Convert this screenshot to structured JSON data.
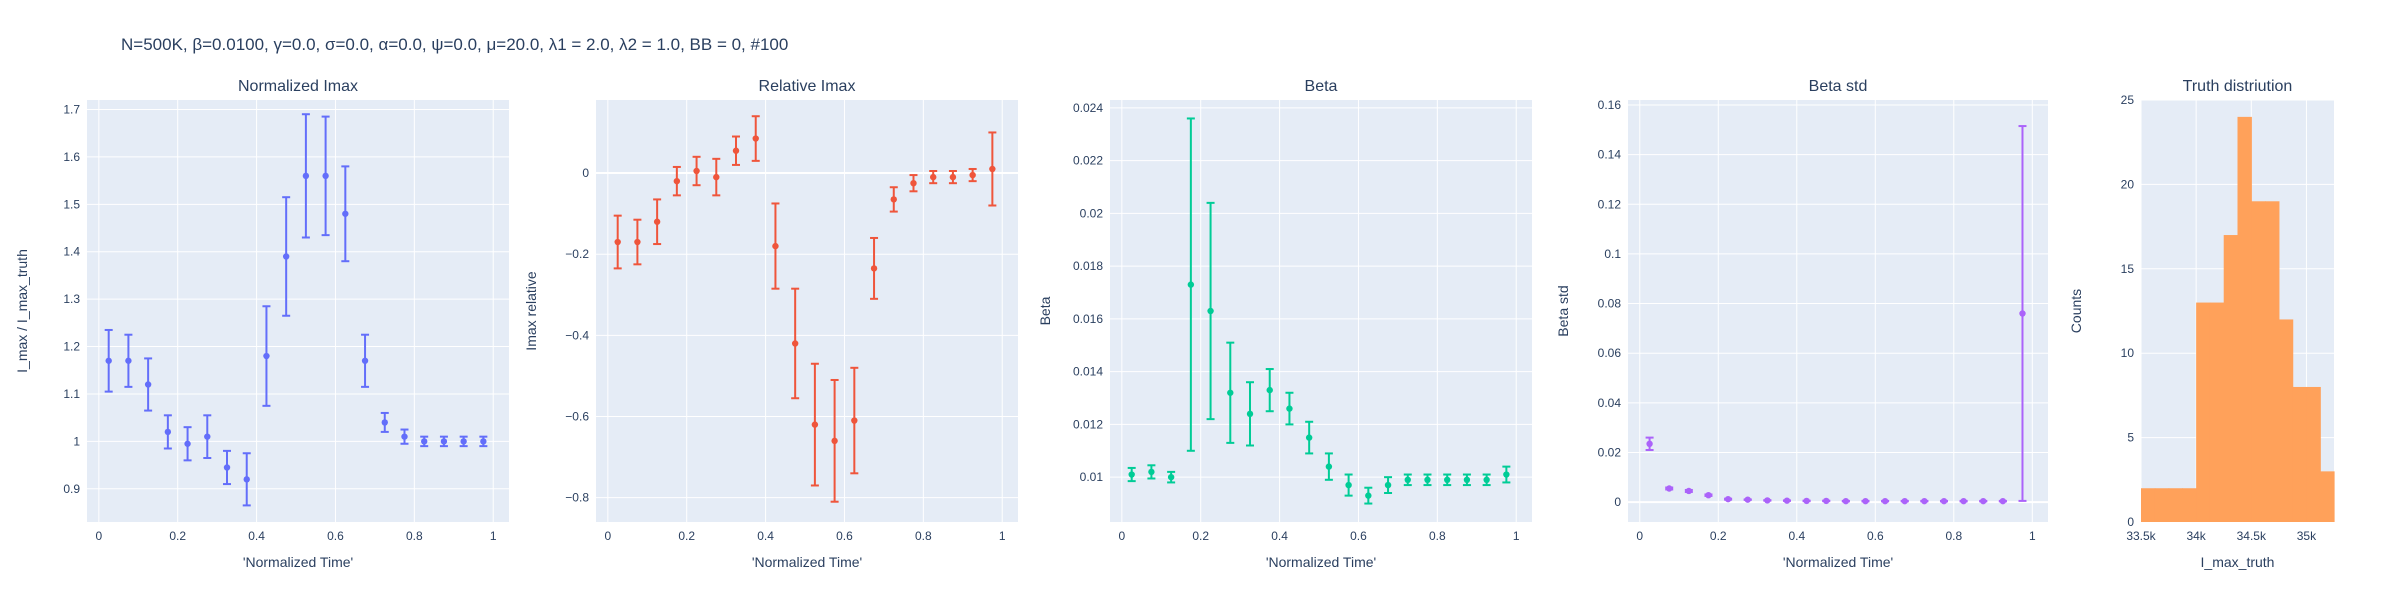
{
  "header": {
    "suptitle": "N=500K, β=0.0100, γ=0.0, σ=0.0,  α=0.0, ψ=0.0, μ=20.0, λ1 = 2.0, λ2 = 1.0, BB = 0, #100"
  },
  "chart_data": [
    {
      "type": "scatter",
      "title": "Normalized Imax",
      "xlabel": "'Normalized Time'",
      "ylabel": "I_max / I_max_truth",
      "color": "#636efa",
      "xlim": [
        -0.03,
        1.04
      ],
      "ylim": [
        0.83,
        1.72
      ],
      "xticks": [
        0,
        0.2,
        0.4,
        0.6,
        0.8,
        1
      ],
      "xticklabels": [
        "0",
        "0.2",
        "0.4",
        "0.6",
        "0.8",
        "1"
      ],
      "yticks": [
        0.9,
        1.0,
        1.1,
        1.2,
        1.3,
        1.4,
        1.5,
        1.6,
        1.7
      ],
      "yticklabels": [
        "0.9",
        "1",
        "1.1",
        "1.2",
        "1.3",
        "1.4",
        "1.5",
        "1.6",
        "1.7"
      ],
      "zero_line": false,
      "x": [
        0.025,
        0.075,
        0.125,
        0.175,
        0.225,
        0.275,
        0.325,
        0.375,
        0.425,
        0.475,
        0.525,
        0.575,
        0.625,
        0.675,
        0.725,
        0.775,
        0.825,
        0.875,
        0.925,
        0.975
      ],
      "y": [
        1.17,
        1.17,
        1.12,
        1.02,
        0.995,
        1.01,
        0.945,
        0.92,
        1.18,
        1.39,
        1.56,
        1.56,
        1.48,
        1.17,
        1.04,
        1.01,
        1.0,
        1.0,
        1.0,
        1.0
      ],
      "err": [
        0.065,
        0.055,
        0.055,
        0.035,
        0.035,
        0.045,
        0.035,
        0.055,
        0.105,
        0.125,
        0.13,
        0.125,
        0.1,
        0.055,
        0.02,
        0.015,
        0.01,
        0.01,
        0.01,
        0.01
      ]
    },
    {
      "type": "scatter",
      "title": "Relative Imax",
      "xlabel": "'Normalized Time'",
      "ylabel": "Imax relative",
      "color": "#ef553b",
      "xlim": [
        -0.03,
        1.04
      ],
      "ylim": [
        -0.86,
        0.18
      ],
      "xticks": [
        0,
        0.2,
        0.4,
        0.6,
        0.8,
        1
      ],
      "xticklabels": [
        "0",
        "0.2",
        "0.4",
        "0.6",
        "0.8",
        "1"
      ],
      "yticks": [
        -0.8,
        -0.6,
        -0.4,
        -0.2,
        0
      ],
      "yticklabels": [
        "−0.8",
        "−0.6",
        "−0.4",
        "−0.2",
        "0"
      ],
      "zero_line": true,
      "x": [
        0.025,
        0.075,
        0.125,
        0.175,
        0.225,
        0.275,
        0.325,
        0.375,
        0.425,
        0.475,
        0.525,
        0.575,
        0.625,
        0.675,
        0.725,
        0.775,
        0.825,
        0.875,
        0.925,
        0.975
      ],
      "y": [
        -0.17,
        -0.17,
        -0.12,
        -0.02,
        0.005,
        -0.01,
        0.055,
        0.085,
        -0.18,
        -0.42,
        -0.62,
        -0.66,
        -0.61,
        -0.235,
        -0.065,
        -0.025,
        -0.01,
        -0.01,
        -0.005,
        0.01
      ],
      "err": [
        0.065,
        0.055,
        0.055,
        0.035,
        0.035,
        0.045,
        0.035,
        0.055,
        0.105,
        0.135,
        0.15,
        0.15,
        0.13,
        0.075,
        0.03,
        0.02,
        0.015,
        0.015,
        0.015,
        0.09
      ]
    },
    {
      "type": "scatter",
      "title": "Beta",
      "xlabel": "'Normalized Time'",
      "ylabel": "Beta",
      "color": "#00cc96",
      "xlim": [
        -0.03,
        1.04
      ],
      "ylim": [
        0.0083,
        0.0243
      ],
      "xticks": [
        0,
        0.2,
        0.4,
        0.6,
        0.8,
        1
      ],
      "xticklabels": [
        "0",
        "0.2",
        "0.4",
        "0.6",
        "0.8",
        "1"
      ],
      "yticks": [
        0.01,
        0.012,
        0.014,
        0.016,
        0.018,
        0.02,
        0.022,
        0.024
      ],
      "yticklabels": [
        "0.01",
        "0.012",
        "0.014",
        "0.016",
        "0.018",
        "0.02",
        "0.022",
        "0.024"
      ],
      "zero_line": false,
      "x": [
        0.025,
        0.075,
        0.125,
        0.175,
        0.225,
        0.275,
        0.325,
        0.375,
        0.425,
        0.475,
        0.525,
        0.575,
        0.625,
        0.675,
        0.725,
        0.775,
        0.825,
        0.875,
        0.925,
        0.975
      ],
      "y": [
        0.0101,
        0.0102,
        0.01,
        0.0173,
        0.0163,
        0.0132,
        0.0124,
        0.0133,
        0.0126,
        0.0115,
        0.0104,
        0.0097,
        0.0093,
        0.0097,
        0.0099,
        0.0099,
        0.0099,
        0.0099,
        0.0099,
        0.0101
      ],
      "err": [
        0.00025,
        0.00025,
        0.0002,
        0.0063,
        0.0041,
        0.0019,
        0.0012,
        0.0008,
        0.0006,
        0.0006,
        0.0005,
        0.0004,
        0.0003,
        0.0003,
        0.0002,
        0.0002,
        0.0002,
        0.0002,
        0.0002,
        0.0003
      ]
    },
    {
      "type": "scatter",
      "title": "Beta std",
      "xlabel": "'Normalized Time'",
      "ylabel": "Beta std",
      "color": "#ab63fa",
      "xlim": [
        -0.03,
        1.04
      ],
      "ylim": [
        -0.008,
        0.162
      ],
      "xticks": [
        0,
        0.2,
        0.4,
        0.6,
        0.8,
        1
      ],
      "xticklabels": [
        "0",
        "0.2",
        "0.4",
        "0.6",
        "0.8",
        "1"
      ],
      "yticks": [
        0,
        0.02,
        0.04,
        0.06,
        0.08,
        0.1,
        0.12,
        0.14,
        0.16
      ],
      "yticklabels": [
        "0",
        "0.02",
        "0.04",
        "0.06",
        "0.08",
        "0.1",
        "0.12",
        "0.14",
        "0.16"
      ],
      "zero_line": true,
      "x": [
        0.025,
        0.075,
        0.125,
        0.175,
        0.225,
        0.275,
        0.325,
        0.375,
        0.425,
        0.475,
        0.525,
        0.575,
        0.625,
        0.675,
        0.725,
        0.775,
        0.825,
        0.875,
        0.925,
        0.975
      ],
      "y": [
        0.0235,
        0.0055,
        0.0045,
        0.0028,
        0.0012,
        0.001,
        0.0007,
        0.0006,
        0.0005,
        0.0005,
        0.0004,
        0.0004,
        0.0004,
        0.0004,
        0.0004,
        0.0004,
        0.0004,
        0.0004,
        0.0004,
        0.076
      ],
      "err": [
        0.0025,
        0.0004,
        0.0004,
        0.0003,
        0.0002,
        0.0001,
        0.0001,
        0.0001,
        0.0001,
        0.0001,
        0.0001,
        0.0001,
        0.0001,
        0.0001,
        0.0001,
        0.0001,
        0.0001,
        0.0001,
        0.0001,
        0.0755
      ]
    },
    {
      "type": "bar",
      "title": "Truth distriution",
      "xlabel": "I_max_truth",
      "ylabel": "Counts",
      "color": "#ffa15a",
      "xlim": [
        33500,
        35250
      ],
      "ylim": [
        0,
        25
      ],
      "xticks": [
        33500,
        34000,
        34500,
        35000
      ],
      "xticklabels": [
        "33.5k",
        "34k",
        "34.5k",
        "35k"
      ],
      "yticks": [
        0,
        5,
        10,
        15,
        20,
        25
      ],
      "yticklabels": [
        "0",
        "5",
        "10",
        "15",
        "20",
        "25"
      ],
      "zero_line": false,
      "bin_edges": [
        33500,
        33625,
        33750,
        33875,
        34000,
        34125,
        34250,
        34375,
        34500,
        34625,
        34750,
        34875,
        35000,
        35125,
        35250
      ],
      "values": [
        2,
        2,
        2,
        2,
        13,
        13,
        17,
        24,
        19,
        19,
        12,
        8,
        8,
        3
      ]
    }
  ]
}
